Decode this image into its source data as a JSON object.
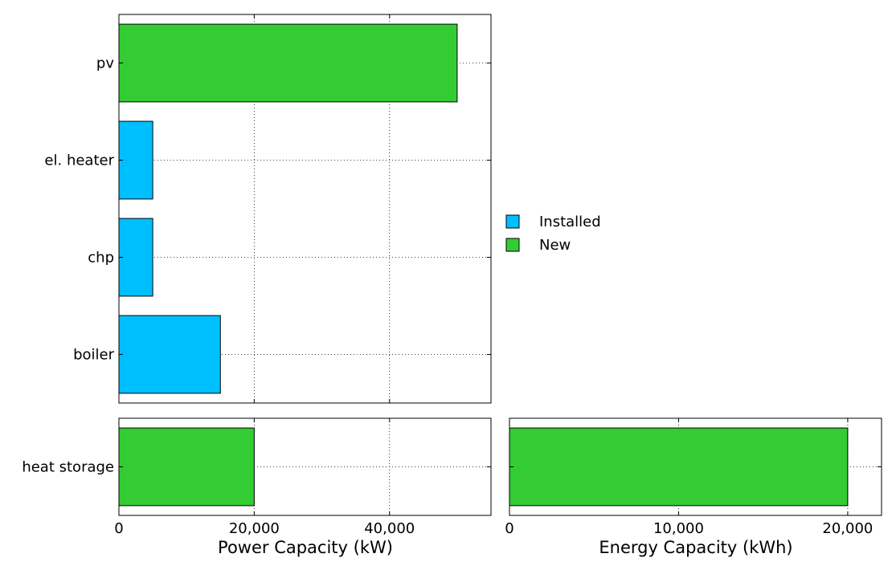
{
  "chart_data": [
    {
      "id": "power-top",
      "type": "bar",
      "orientation": "horizontal",
      "categories": [
        "boiler",
        "chp",
        "el. heater",
        "pv"
      ],
      "series": [
        {
          "name": "Installed",
          "values": [
            15000,
            5000,
            5000,
            0
          ]
        },
        {
          "name": "New",
          "values": [
            0,
            0,
            0,
            50000
          ]
        }
      ],
      "xlim": [
        0,
        55000
      ],
      "xticks": [
        0,
        20000,
        40000
      ],
      "grid": true
    },
    {
      "id": "power-storage",
      "type": "bar",
      "orientation": "horizontal",
      "categories": [
        "heat storage"
      ],
      "series": [
        {
          "name": "Installed",
          "values": [
            0
          ]
        },
        {
          "name": "New",
          "values": [
            20000
          ]
        }
      ],
      "xlim": [
        0,
        55000
      ],
      "xticks": [
        0,
        20000,
        40000
      ],
      "xtick_labels": [
        "0",
        "20,000",
        "40,000"
      ],
      "xlabel": "Power Capacity (kW)",
      "grid": true
    },
    {
      "id": "energy-storage",
      "type": "bar",
      "orientation": "horizontal",
      "categories": [
        "heat storage"
      ],
      "series": [
        {
          "name": "Installed",
          "values": [
            0
          ]
        },
        {
          "name": "New",
          "values": [
            20000
          ]
        }
      ],
      "xlim": [
        0,
        22000
      ],
      "xticks": [
        0,
        10000,
        20000
      ],
      "xtick_labels": [
        "0",
        "10,000",
        "20,000"
      ],
      "xlabel": "Energy Capacity (kWh)",
      "grid": true
    }
  ],
  "legend": {
    "position": "right-middle",
    "items": [
      {
        "label": "Installed",
        "color": "#00bfff"
      },
      {
        "label": "New",
        "color": "#33cc33"
      }
    ]
  },
  "colors": {
    "Installed": "#00bfff",
    "New": "#33cc33"
  }
}
